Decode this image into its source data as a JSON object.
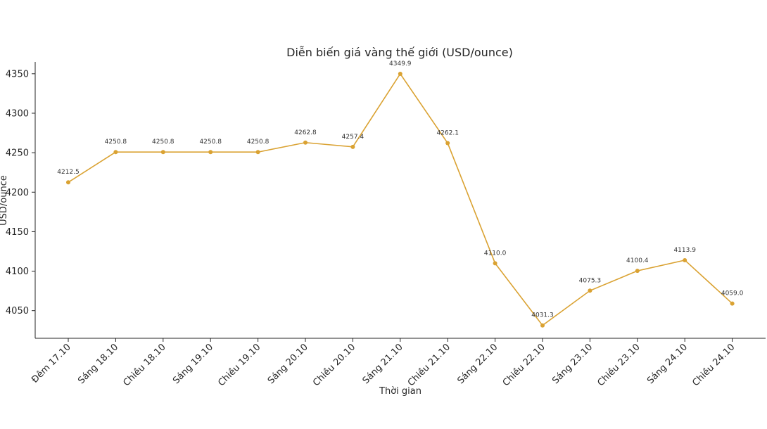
{
  "chart_data": {
    "type": "line",
    "title": "Diễn biến giá vàng thế giới (USD/ounce)",
    "xlabel": "Thời gian",
    "ylabel": "USD/ounce",
    "categories": [
      "Đêm 17.10",
      "Sáng 18.10",
      "Chiều 18.10",
      "Sáng 19.10",
      "Chiều 19.10",
      "Sáng 20.10",
      "Chiều 20.10",
      "Sáng 21.10",
      "Chiều 21.10",
      "Sáng 22.10",
      "Chiều 22.10",
      "Sáng 23.10",
      "Chiều 23.10",
      "Sáng 24.10",
      "Chiều 24.10"
    ],
    "series": [
      {
        "values": [
          4212.5,
          4250.8,
          4250.8,
          4250.8,
          4250.8,
          4262.8,
          4257.4,
          4349.9,
          4262.1,
          4110.0,
          4031.3,
          4075.3,
          4100.4,
          4113.9,
          4059.0
        ],
        "labels": [
          "4212.5",
          "4250.8",
          "4250.8",
          "4250.8",
          "4250.8",
          "4262.8",
          "4257.4",
          "4349.9",
          "4262.1",
          "4110.0",
          "4031.3",
          "4075.3",
          "4100.4",
          "4113.9",
          "4059.0"
        ],
        "color": "#DAA232"
      }
    ],
    "ylim": [
      4015,
      4365
    ],
    "yticks": [
      4050,
      4100,
      4150,
      4200,
      4250,
      4300,
      4350
    ],
    "yticks_labels": [
      "4050",
      "4100",
      "4150",
      "4200",
      "4250",
      "4300",
      "4350"
    ],
    "grid": false,
    "legend": "none"
  }
}
